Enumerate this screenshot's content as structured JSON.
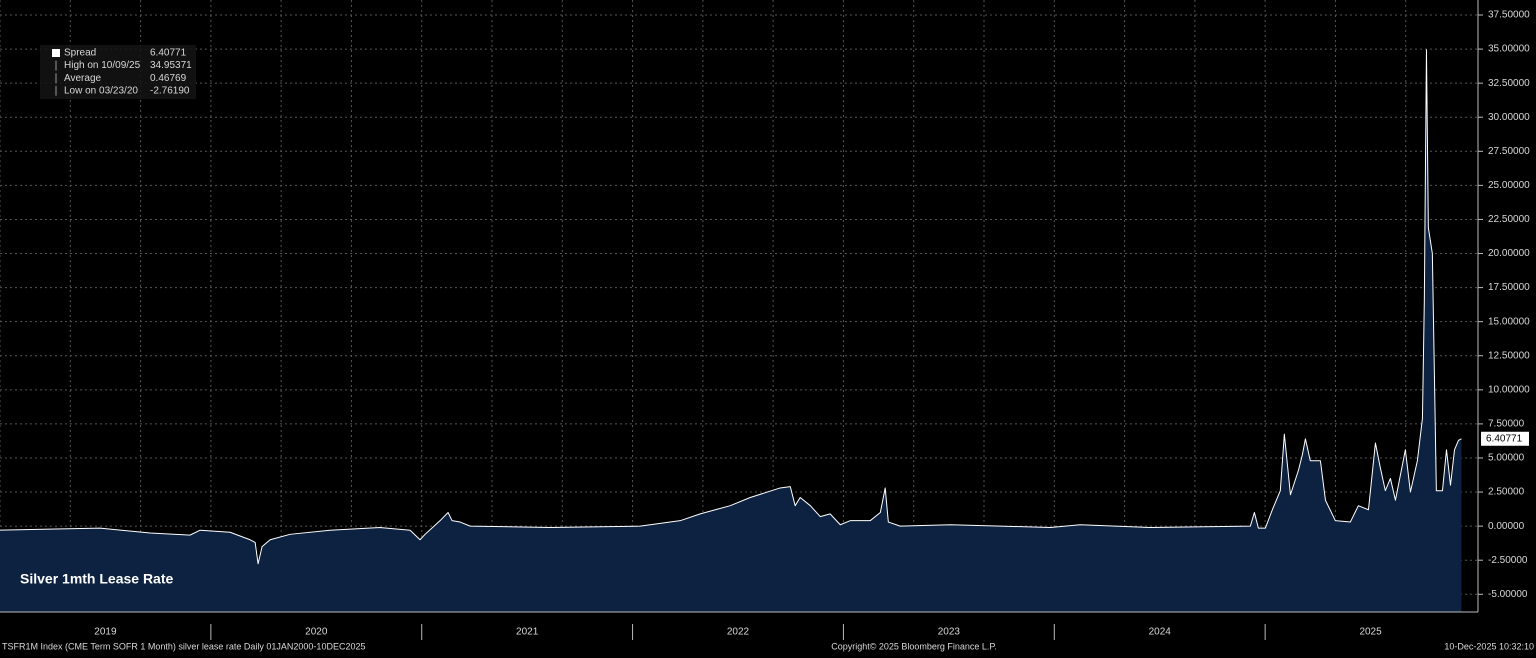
{
  "chart_data": {
    "type": "area",
    "title": "Silver 1mth Lease Rate",
    "footer_left": "TSFR1M Index (CME Term SOFR 1 Month) silver lease rate Daily 01JAN2000-10DEC2025",
    "footer_center": "Copyright© 2025 Bloomberg Finance L.P.",
    "footer_right": "10-Dec-2025 10:32:10",
    "legend": [
      {
        "label": "Spread",
        "value": "6.40771"
      },
      {
        "label": "High on 10/09/25",
        "value": "34.95371"
      },
      {
        "label": "Average",
        "value": "0.46769"
      },
      {
        "label": "Low on 03/23/20",
        "value": "-2.76190"
      }
    ],
    "last_value_label": "6.40771",
    "xlim": [
      2019,
      2026
    ],
    "xticks": [
      2019,
      2020,
      2021,
      2022,
      2023,
      2024,
      2025
    ],
    "ylim": [
      -6.3,
      38.6
    ],
    "yticks": [
      {
        "value": -5,
        "label": "-5.00000"
      },
      {
        "value": -2.5,
        "label": "-2.50000"
      },
      {
        "value": 0,
        "label": "0.00000"
      },
      {
        "value": 2.5,
        "label": "2.50000"
      },
      {
        "value": 5,
        "label": "5.00000"
      },
      {
        "value": 7.5,
        "label": "7.50000"
      },
      {
        "value": 10,
        "label": "10.00000"
      },
      {
        "value": 12.5,
        "label": "12.50000"
      },
      {
        "value": 15,
        "label": "15.00000"
      },
      {
        "value": 17.5,
        "label": "17.50000"
      },
      {
        "value": 20,
        "label": "20.00000"
      },
      {
        "value": 22.5,
        "label": "22.50000"
      },
      {
        "value": 25,
        "label": "25.00000"
      },
      {
        "value": 27.5,
        "label": "27.50000"
      },
      {
        "value": 30,
        "label": "30.00000"
      },
      {
        "value": 32.5,
        "label": "32.50000"
      },
      {
        "value": 35,
        "label": "35.00000"
      },
      {
        "value": 37.5,
        "label": "37.50000"
      }
    ],
    "grid": true,
    "line_color": "#ffffff",
    "fill_color": "#0c2240",
    "x": [
      2019.0,
      2019.237,
      2019.474,
      2019.712,
      2019.901,
      2019.949,
      2020.091,
      2020.186,
      2020.21,
      2020.224,
      2020.243,
      2020.281,
      2020.376,
      2020.565,
      2020.803,
      2020.945,
      2020.992,
      2021.016,
      2021.087,
      2021.125,
      2021.144,
      2021.182,
      2021.23,
      2021.609,
      2022.036,
      2022.226,
      2022.321,
      2022.463,
      2022.558,
      2022.7,
      2022.748,
      2022.771,
      2022.795,
      2022.843,
      2022.89,
      2022.937,
      2022.985,
      2023.032,
      2023.127,
      2023.175,
      2023.198,
      2023.213,
      2023.269,
      2023.507,
      2023.744,
      2023.981,
      2024.123,
      2024.455,
      2024.93,
      2024.949,
      2024.968,
      2025.001,
      2025.034,
      2025.072,
      2025.091,
      2025.12,
      2025.158,
      2025.176,
      2025.191,
      2025.214,
      2025.262,
      2025.286,
      2025.333,
      2025.404,
      2025.442,
      2025.49,
      2025.523,
      2025.546,
      2025.57,
      2025.594,
      2025.618,
      2025.665,
      2025.689,
      2025.722,
      2025.746,
      2025.755,
      2025.765,
      2025.774,
      2025.793,
      2025.812,
      2025.841,
      2025.86,
      2025.879,
      2025.898,
      2025.917,
      2025.931
    ],
    "values": [
      -0.29,
      -0.22,
      -0.15,
      -0.5,
      -0.66,
      -0.3,
      -0.45,
      -1.0,
      -1.2,
      -2.76,
      -1.5,
      -1.0,
      -0.6,
      -0.3,
      -0.1,
      -0.3,
      -1.0,
      -0.6,
      0.4,
      1.0,
      0.4,
      0.3,
      0.0,
      -0.1,
      0.0,
      0.4,
      0.9,
      1.5,
      2.1,
      2.8,
      2.9,
      1.5,
      2.1,
      1.5,
      0.7,
      0.9,
      0.1,
      0.4,
      0.4,
      1.0,
      2.8,
      0.3,
      0.0,
      0.1,
      0.0,
      -0.1,
      0.1,
      -0.1,
      0.0,
      1.0,
      -0.15,
      -0.15,
      1.2,
      2.6,
      6.75,
      2.3,
      4.1,
      5.2,
      6.4,
      4.8,
      4.8,
      1.9,
      0.4,
      0.3,
      1.5,
      1.2,
      6.1,
      4.3,
      2.6,
      3.5,
      1.9,
      5.6,
      2.5,
      4.8,
      7.9,
      16.6,
      34.95,
      21.9,
      20.0,
      2.6,
      2.6,
      5.6,
      3.0,
      5.6,
      6.3,
      6.41
    ]
  }
}
